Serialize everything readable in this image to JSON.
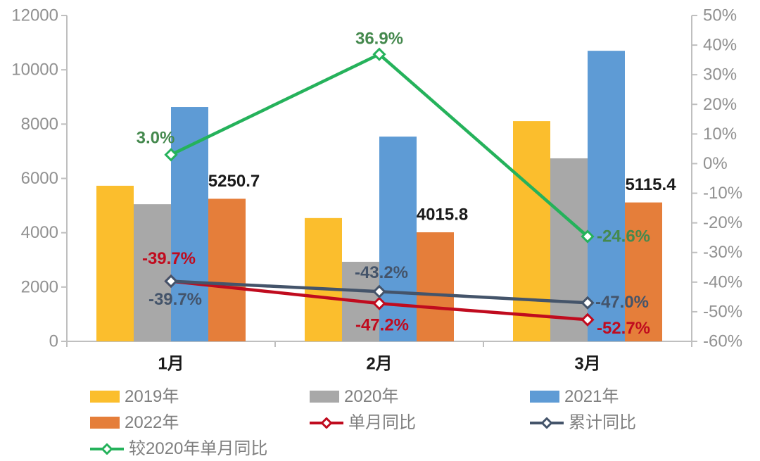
{
  "chart_data": {
    "type": "bar",
    "subtype": "grouped bars with overlay line series (dual axis combo)",
    "title": "",
    "categories": [
      "1月",
      "2月",
      "3月"
    ],
    "bar_series": [
      {
        "name": "2019年",
        "color": "#FBBE2D",
        "values": [
          5730,
          4540,
          8110
        ]
      },
      {
        "name": "2020年",
        "color": "#A8A8A8",
        "values": [
          5050,
          2930,
          6740
        ]
      },
      {
        "name": "2021年",
        "color": "#5E9BD5",
        "values": [
          8630,
          7540,
          10700
        ]
      },
      {
        "name": "2022年",
        "color": "#E57E3A",
        "values": [
          5250.7,
          4015.8,
          5115.4
        ],
        "data_labels": [
          "5250.7",
          "4015.8",
          "5115.4"
        ],
        "label_color": "#1A1A1A"
      }
    ],
    "line_series": [
      {
        "name": "单月同比",
        "color": "#C00B1E",
        "axis": "right",
        "values": [
          -39.7,
          -47.2,
          -52.7
        ],
        "data_labels": [
          "-39.7%",
          "-47.2%",
          "-52.7%"
        ],
        "label_color": "#C00B1E"
      },
      {
        "name": "累计同比",
        "color": "#44546A",
        "axis": "right",
        "values": [
          -39.7,
          -43.2,
          -47.0
        ],
        "data_labels": [
          "-39.7%",
          "-43.2%",
          "-47.0%"
        ],
        "label_color": "#44546A"
      },
      {
        "name": "较2020年单月同比",
        "color": "#25B25B",
        "axis": "right",
        "values": [
          3.0,
          36.9,
          -24.6
        ],
        "data_labels": [
          "3.0%",
          "36.9%",
          "-24.6%"
        ],
        "label_color": "#45894E"
      }
    ],
    "left_axis": {
      "min": 0,
      "max": 12000,
      "step": 2000,
      "tick_labels": [
        "0",
        "2000",
        "4000",
        "6000",
        "8000",
        "10000",
        "12000"
      ]
    },
    "right_axis": {
      "min": -60,
      "max": 50,
      "step": 10,
      "tick_labels": [
        "-60%",
        "-50%",
        "-40%",
        "-30%",
        "-20%",
        "-10%",
        "0%",
        "10%",
        "20%",
        "30%",
        "40%",
        "50%"
      ]
    },
    "grid": "off",
    "legend_position": "bottom-left",
    "note_bar_values": "2019/2020/2021 bar values estimated from axis scale; 2022 values are the printed data labels"
  }
}
